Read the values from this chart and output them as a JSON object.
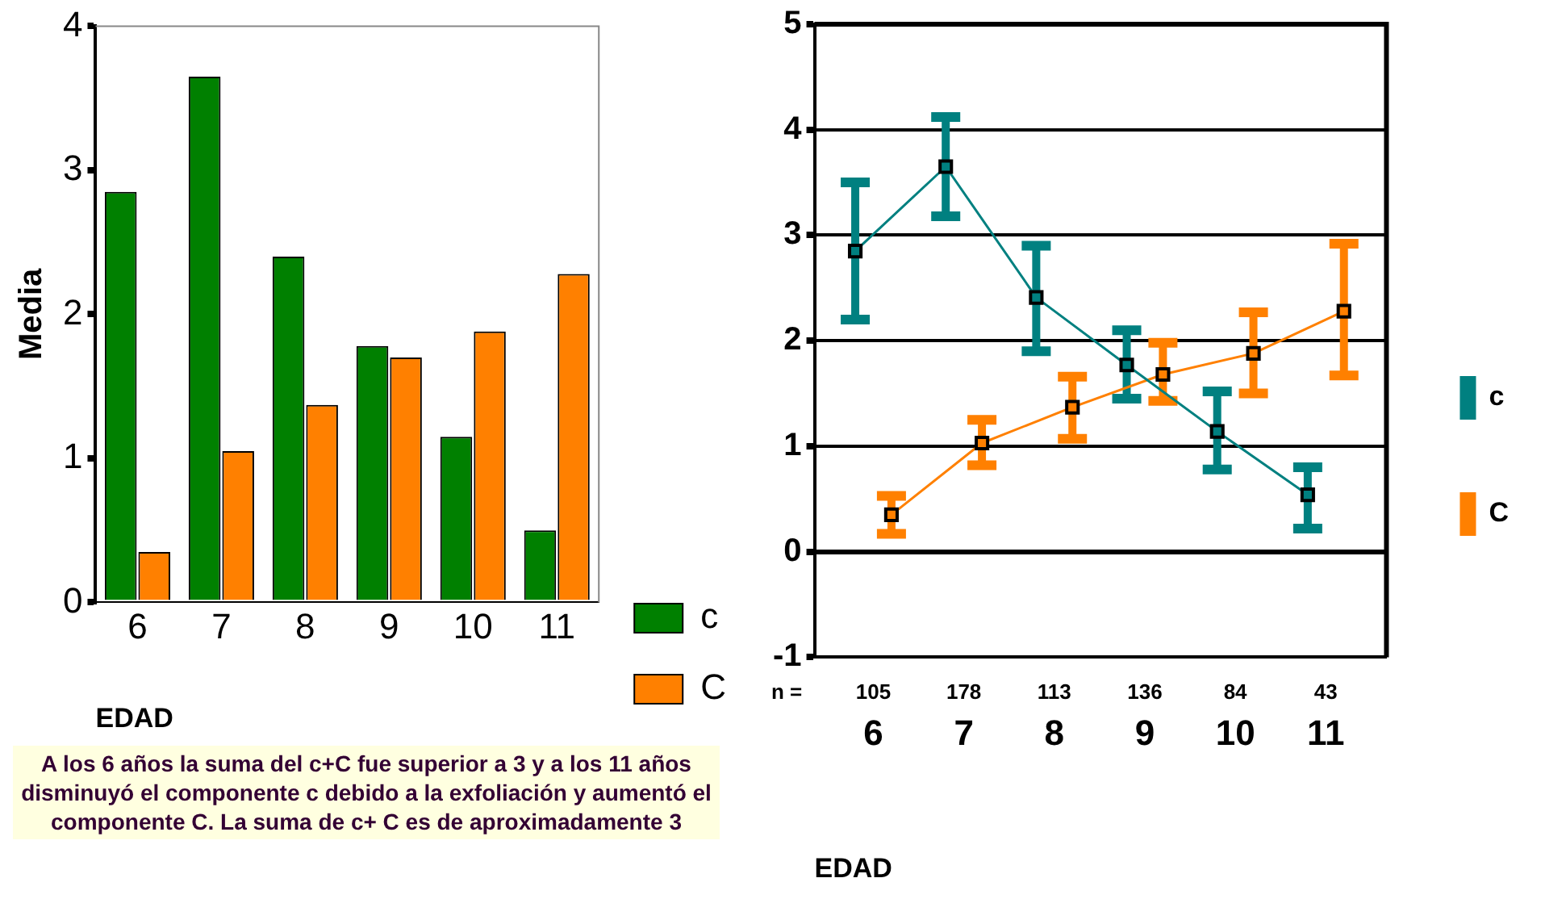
{
  "chart_data": [
    {
      "type": "bar",
      "categories": [
        "6",
        "7",
        "8",
        "9",
        "10",
        "11"
      ],
      "series": [
        {
          "name": "c",
          "color": "#008000",
          "values": [
            2.85,
            3.65,
            2.4,
            1.78,
            1.15,
            0.5
          ]
        },
        {
          "name": "C",
          "color": "#ff8000",
          "values": [
            0.35,
            1.05,
            1.37,
            1.7,
            1.88,
            2.28
          ]
        }
      ],
      "ylim": [
        0,
        4
      ],
      "yticks": [
        0,
        1,
        2,
        3,
        4
      ],
      "xlabel": "EDAD",
      "ylabel": "Media",
      "grid": false,
      "legend": "bottom right",
      "annotations": [
        "A los 6 años la suma del c+C fue superior a 3  y a los 11 años disminuyó el componente c debido a la exfoliación y aumentó el componente C. La suma de c+ C es de aproximadamente 3"
      ]
    },
    {
      "type": "line",
      "categories": [
        "6",
        "7",
        "8",
        "9",
        "10",
        "11"
      ],
      "series": [
        {
          "name": "c",
          "color": "#008080",
          "values": [
            2.85,
            3.65,
            2.41,
            1.77,
            1.14,
            0.54
          ],
          "errors": [
            [
              2.2,
              3.5
            ],
            [
              3.18,
              4.12
            ],
            [
              1.9,
              2.9
            ],
            [
              1.45,
              2.1
            ],
            [
              0.78,
              1.52
            ],
            [
              0.22,
              0.8
            ]
          ]
        },
        {
          "name": "C",
          "color": "#ff8000",
          "values": [
            0.35,
            1.03,
            1.37,
            1.68,
            1.88,
            2.28
          ],
          "errors": [
            [
              0.17,
              0.53
            ],
            [
              0.82,
              1.25
            ],
            [
              1.07,
              1.66
            ],
            [
              1.43,
              1.98
            ],
            [
              1.5,
              2.27
            ],
            [
              1.67,
              2.92
            ]
          ]
        }
      ],
      "ylim": [
        -1,
        5
      ],
      "yticks": [
        -1,
        0,
        1,
        2,
        3,
        4,
        5
      ],
      "xlabel": "EDAD",
      "grid": "y",
      "legend": "right",
      "marker": "square",
      "annotations": [
        "n =",
        "105",
        "178",
        "113",
        "136",
        "84",
        "43"
      ]
    }
  ]
}
